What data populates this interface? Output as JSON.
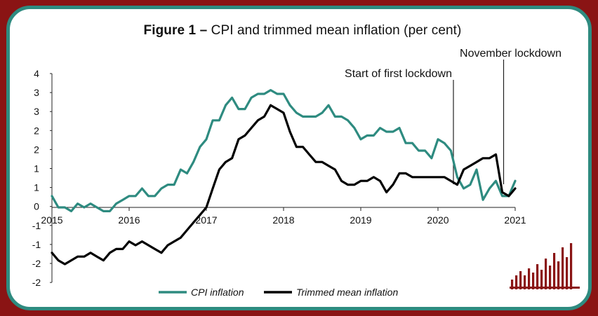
{
  "chart_data": {
    "type": "line",
    "title_bold": "Figure 1 –",
    "title_rest": "CPI and trimmed mean inflation (per cent)",
    "xlabel": "",
    "ylabel": "",
    "x_ticks": [
      "2015",
      "2016",
      "2017",
      "2018",
      "2019",
      "2020",
      "2021"
    ],
    "y_ticks": [
      "4",
      "3",
      "3",
      "2",
      "2",
      "1",
      "1",
      "0",
      "-1",
      "-1",
      "-2",
      "-2"
    ],
    "legend_position": "bottom",
    "grid": false,
    "annotations": [
      {
        "text": "Start of first lockdown",
        "x": 2020.2
      },
      {
        "text": "November lockdown",
        "x": 2020.85
      }
    ],
    "series": [
      {
        "name": "CPI inflation",
        "color": "#2e8b80",
        "x": [
          2015.0,
          2015.083,
          2015.167,
          2015.25,
          2015.333,
          2015.417,
          2015.5,
          2015.583,
          2015.667,
          2015.75,
          2015.833,
          2015.917,
          2016.0,
          2016.083,
          2016.167,
          2016.25,
          2016.333,
          2016.417,
          2016.5,
          2016.583,
          2016.667,
          2016.75,
          2016.833,
          2016.917,
          2017.0,
          2017.083,
          2017.167,
          2017.25,
          2017.333,
          2017.417,
          2017.5,
          2017.583,
          2017.667,
          2017.75,
          2017.833,
          2017.917,
          2018.0,
          2018.083,
          2018.167,
          2018.25,
          2018.333,
          2018.417,
          2018.5,
          2018.583,
          2018.667,
          2018.75,
          2018.833,
          2018.917,
          2019.0,
          2019.083,
          2019.167,
          2019.25,
          2019.333,
          2019.417,
          2019.5,
          2019.583,
          2019.667,
          2019.75,
          2019.833,
          2019.917,
          2020.0,
          2020.083,
          2020.167,
          2020.25,
          2020.333,
          2020.417,
          2020.5,
          2020.583,
          2020.667,
          2020.75,
          2020.833,
          2020.917,
          2021.0
        ],
        "values": [
          0.3,
          0.0,
          0.0,
          -0.1,
          0.1,
          0.0,
          0.1,
          0.0,
          -0.1,
          -0.1,
          0.1,
          0.2,
          0.3,
          0.3,
          0.5,
          0.3,
          0.3,
          0.5,
          0.6,
          0.6,
          1.0,
          0.9,
          1.2,
          1.6,
          1.8,
          2.3,
          2.3,
          2.7,
          2.9,
          2.6,
          2.6,
          2.9,
          3.0,
          3.0,
          3.1,
          3.0,
          3.0,
          2.7,
          2.5,
          2.4,
          2.4,
          2.4,
          2.5,
          2.7,
          2.4,
          2.4,
          2.3,
          2.1,
          1.8,
          1.9,
          1.9,
          2.1,
          2.0,
          2.0,
          2.1,
          1.7,
          1.7,
          1.5,
          1.5,
          1.3,
          1.8,
          1.7,
          1.5,
          0.8,
          0.5,
          0.6,
          1.0,
          0.2,
          0.5,
          0.7,
          0.3,
          0.3,
          0.7
        ]
      },
      {
        "name": "Trimmed mean inflation",
        "color": "#000000",
        "x": [
          2015.0,
          2015.083,
          2015.167,
          2015.25,
          2015.333,
          2015.417,
          2015.5,
          2015.583,
          2015.667,
          2015.75,
          2015.833,
          2015.917,
          2016.0,
          2016.083,
          2016.167,
          2016.25,
          2016.333,
          2016.417,
          2016.5,
          2016.583,
          2016.667,
          2016.75,
          2016.833,
          2016.917,
          2017.0,
          2017.083,
          2017.167,
          2017.25,
          2017.333,
          2017.417,
          2017.5,
          2017.583,
          2017.667,
          2017.75,
          2017.833,
          2017.917,
          2018.0,
          2018.083,
          2018.167,
          2018.25,
          2018.333,
          2018.417,
          2018.5,
          2018.583,
          2018.667,
          2018.75,
          2018.833,
          2018.917,
          2019.0,
          2019.083,
          2019.167,
          2019.25,
          2019.333,
          2019.417,
          2019.5,
          2019.583,
          2019.667,
          2019.75,
          2019.833,
          2019.917,
          2020.0,
          2020.083,
          2020.167,
          2020.25,
          2020.333,
          2020.417,
          2020.5,
          2020.583,
          2020.667,
          2020.75,
          2020.833,
          2020.917,
          2021.0
        ],
        "values": [
          -1.2,
          -1.4,
          -1.5,
          -1.4,
          -1.3,
          -1.3,
          -1.2,
          -1.3,
          -1.4,
          -1.2,
          -1.1,
          -1.1,
          -0.9,
          -1.0,
          -0.9,
          -1.0,
          -1.1,
          -1.2,
          -1.0,
          -0.9,
          -0.8,
          -0.6,
          -0.4,
          -0.2,
          0.0,
          0.5,
          1.0,
          1.2,
          1.3,
          1.8,
          1.9,
          2.1,
          2.3,
          2.4,
          2.7,
          2.6,
          2.5,
          2.0,
          1.6,
          1.6,
          1.4,
          1.2,
          1.2,
          1.1,
          1.0,
          0.7,
          0.6,
          0.6,
          0.7,
          0.7,
          0.8,
          0.7,
          0.4,
          0.6,
          0.9,
          0.9,
          0.8,
          0.8,
          0.8,
          0.8,
          0.8,
          0.8,
          0.7,
          0.6,
          1.0,
          1.1,
          1.2,
          1.3,
          1.3,
          1.4,
          0.4,
          0.3,
          0.5
        ]
      }
    ]
  },
  "logo": "bar-chart-logo-icon"
}
